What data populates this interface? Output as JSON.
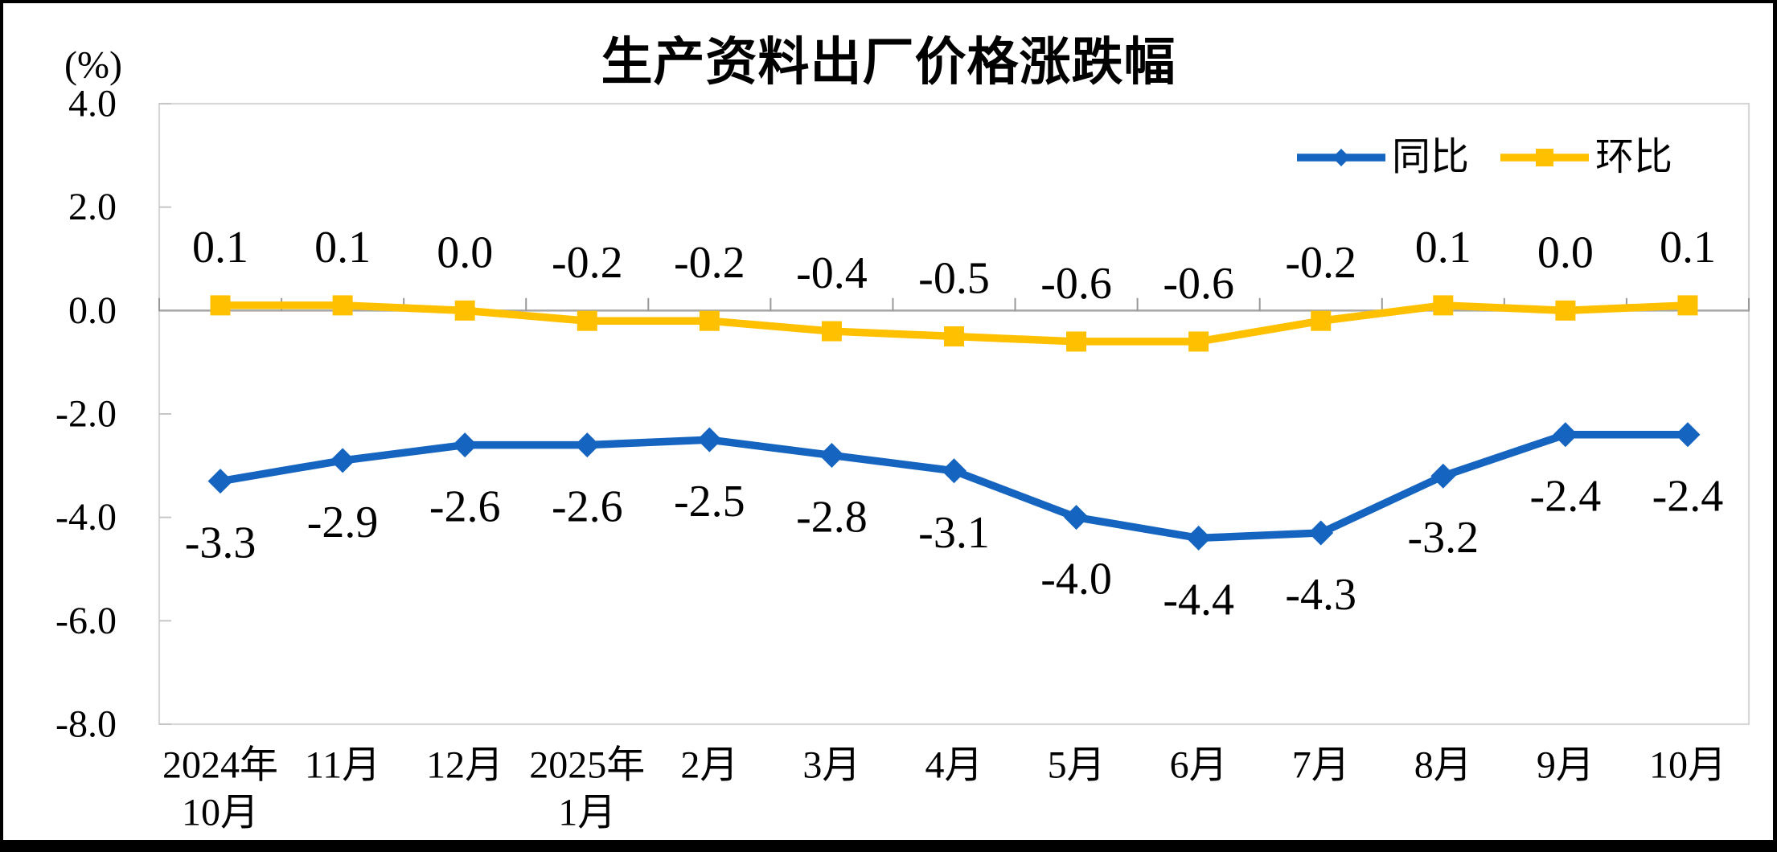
{
  "chart_data": {
    "type": "line",
    "title": "生产资料出厂价格涨跌幅",
    "unit": "(%)",
    "categories": [
      [
        "2024年",
        "10月"
      ],
      [
        "11月"
      ],
      [
        "12月"
      ],
      [
        "2025年",
        "1月"
      ],
      [
        "2月"
      ],
      [
        "3月"
      ],
      [
        "4月"
      ],
      [
        "5月"
      ],
      [
        "6月"
      ],
      [
        "7月"
      ],
      [
        "8月"
      ],
      [
        "9月"
      ],
      [
        "10月"
      ]
    ],
    "series": [
      {
        "name": "同比",
        "color": "#1565C0",
        "marker": "diamond",
        "label_position": "below",
        "values": [
          -3.3,
          -2.9,
          -2.6,
          -2.6,
          -2.5,
          -2.8,
          -3.1,
          -4.0,
          -4.4,
          -4.3,
          -3.2,
          -2.4,
          -2.4
        ],
        "labels": [
          "-3.3",
          "-2.9",
          "-2.6",
          "-2.6",
          "-2.5",
          "-2.8",
          "-3.1",
          "-4.0",
          "-4.4",
          "-4.3",
          "-3.2",
          "-2.4",
          "-2.4"
        ]
      },
      {
        "name": "环比",
        "color": "#FFC000",
        "marker": "square",
        "label_position": "above",
        "values": [
          0.1,
          0.1,
          0.0,
          -0.2,
          -0.2,
          -0.4,
          -0.5,
          -0.6,
          -0.6,
          -0.2,
          0.1,
          0.0,
          0.1
        ],
        "labels": [
          "0.1",
          "0.1",
          "0.0",
          "-0.2",
          "-0.2",
          "-0.4",
          "-0.5",
          "-0.6",
          "-0.6",
          "-0.2",
          "0.1",
          "0.0",
          "0.1"
        ]
      }
    ],
    "y_axis": {
      "min": -8.0,
      "max": 4.0,
      "tick_interval": 2.0,
      "tick_labels": [
        "4.0",
        "2.0",
        "0.0",
        "-2.0",
        "-4.0",
        "-6.0",
        "-8.0"
      ],
      "tick_values": [
        4,
        2,
        0,
        -2,
        -4,
        -6,
        -8
      ]
    },
    "legend": {
      "position": "top-right"
    },
    "gridlines": false,
    "colors": {
      "axis_line": "#A6A6A6",
      "boundary_tick": "#999999",
      "plot_border": "#D7D7D7",
      "left_tick": "#C6C6C6",
      "text": "#000000",
      "background": "#FFFFFF",
      "outer_border": "#000000"
    }
  }
}
